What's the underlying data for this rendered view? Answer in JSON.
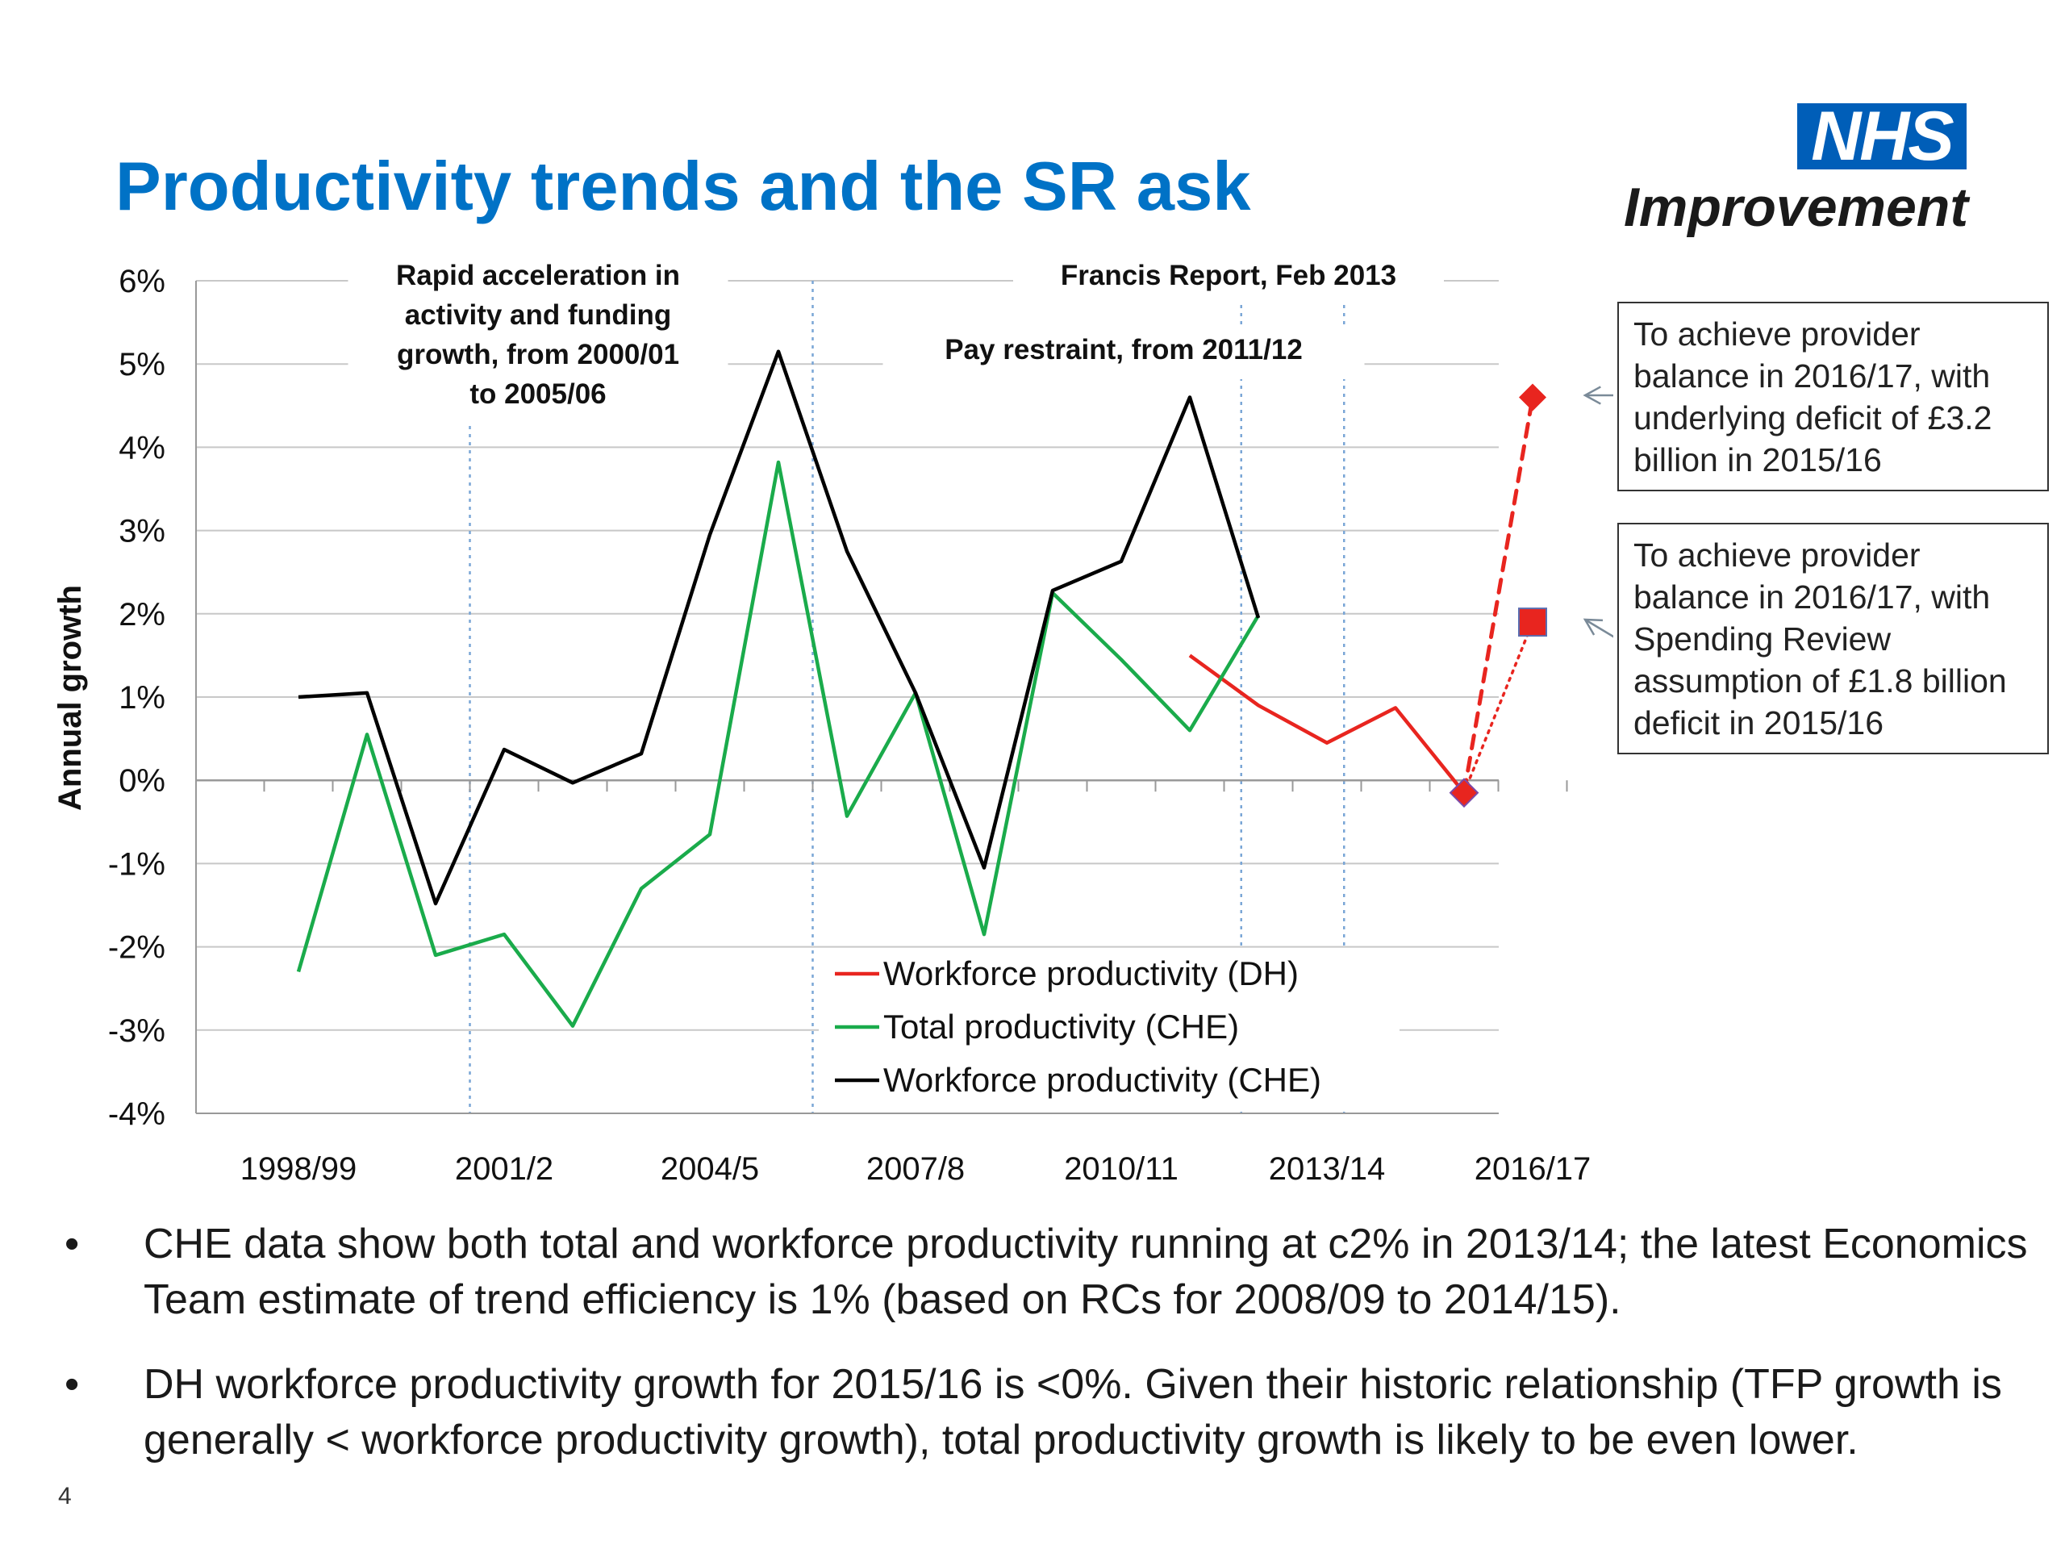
{
  "slide": {
    "title": "Productivity trends and the SR ask",
    "logo_mark": "NHS",
    "logo_text": "Improvement",
    "page_number": "4",
    "colors": {
      "title": "#0072c6",
      "logo": "#005eb8"
    }
  },
  "callouts": [
    "To achieve provider balance in 2016/17, with underlying deficit of £3.2 billion in 2015/16",
    "To achieve provider balance in 2016/17, with Spending Review assumption of £1.8 billion deficit in 2015/16"
  ],
  "bullets": [
    "CHE data show both total and workforce productivity running at c2% in 2013/14; the latest Economics Team estimate of trend efficiency is 1% (based on RCs for 2008/09 to 2014/15).",
    "DH workforce productivity growth for 2015/16 is <0%. Given their historic relationship (TFP growth is generally < workforce productivity growth), total productivity growth is likely to be even lower."
  ],
  "bullet_symbol": "•",
  "chart_data": {
    "type": "line",
    "ylabel": "Annual growth",
    "xlabel": "",
    "ylim": [
      -4,
      6
    ],
    "yticks": [
      6,
      5,
      4,
      3,
      2,
      1,
      0,
      -1,
      -2,
      -3,
      -4
    ],
    "ytick_labels": [
      "6%",
      "5%",
      "4%",
      "3%",
      "2%",
      "1%",
      "0%",
      "-1%",
      "-2%",
      "-3%",
      "-4%"
    ],
    "grid": true,
    "categories": [
      "1998/99",
      "1999/00",
      "2000/01",
      "2001/2",
      "2002/3",
      "2003/4",
      "2004/5",
      "2005/6",
      "2006/7",
      "2007/8",
      "2008/9",
      "2009/10",
      "2010/11",
      "2011/12",
      "2012/13",
      "2013/14",
      "2014/15",
      "2015/16",
      "2016/17"
    ],
    "x_tick_labels": [
      {
        "index": 0,
        "label": "1998/99"
      },
      {
        "index": 3,
        "label": "2001/2"
      },
      {
        "index": 6,
        "label": "2004/5"
      },
      {
        "index": 9,
        "label": "2007/8"
      },
      {
        "index": 12,
        "label": "2010/11"
      },
      {
        "index": 15,
        "label": "2013/14"
      },
      {
        "index": 18,
        "label": "2016/17"
      }
    ],
    "series": [
      {
        "name": "Workforce productivity (DH)",
        "color": "#e8251f",
        "values": [
          null,
          null,
          null,
          null,
          null,
          null,
          null,
          null,
          null,
          null,
          null,
          null,
          null,
          1.5,
          0.9,
          0.45,
          0.87,
          -0.15,
          null
        ]
      },
      {
        "name": "Total productivity (CHE)",
        "color": "#1aab4b",
        "values": [
          -2.3,
          0.55,
          -2.1,
          -1.85,
          -2.95,
          -1.3,
          -0.65,
          3.82,
          -0.43,
          1.05,
          -1.85,
          2.25,
          1.45,
          0.6,
          1.98,
          null,
          null,
          null,
          null
        ]
      },
      {
        "name": "Workforce productivity (CHE)",
        "color": "#000000",
        "values": [
          1.0,
          1.05,
          -1.48,
          0.37,
          -0.03,
          0.32,
          2.95,
          5.15,
          2.75,
          1.05,
          -1.05,
          2.28,
          2.63,
          4.6,
          1.95,
          null,
          null,
          null,
          null
        ]
      }
    ],
    "legend_position": "bottom-center",
    "annotations": [
      {
        "text": "Rapid acceleration in activity and funding growth, from 2000/01 to 2005/06"
      },
      {
        "text": "Francis Report, Feb 2013"
      },
      {
        "text": "Pay restraint, from 2011/12"
      }
    ],
    "event_lines": [
      {
        "x": "2000/01",
        "offset": 0.5
      },
      {
        "x": "2005/6",
        "offset": 0.5
      },
      {
        "x": "2012/13",
        "offset": -0.25
      },
      {
        "x": "2013/14",
        "offset": 0.25
      }
    ],
    "projections": [
      {
        "label": "underlying deficit scenario",
        "from": [
          "2015/16",
          -0.15
        ],
        "to": [
          "2016/17",
          4.6
        ],
        "marker": "diamond",
        "line": "dashed",
        "color": "#e8251f"
      },
      {
        "label": "Spending Review scenario",
        "from": [
          "2015/16",
          -0.15
        ],
        "to": [
          "2016/17",
          1.9
        ],
        "marker": "square",
        "line": "dotted",
        "color": "#e8251f"
      }
    ]
  }
}
